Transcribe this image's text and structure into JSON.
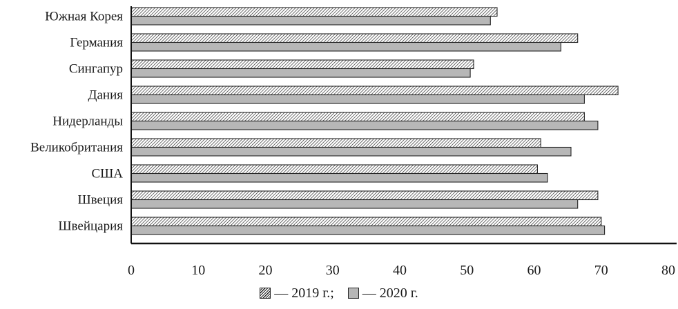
{
  "chart_data": {
    "type": "bar",
    "orientation": "horizontal",
    "categories": [
      "Южная Корея",
      "Германия",
      "Сингапур",
      "Дания",
      "Нидерланды",
      "Великобритания",
      "США",
      "Швеция",
      "Швейцария"
    ],
    "series": [
      {
        "name": "2019 г.",
        "values": [
          54.5,
          66.5,
          51,
          72.5,
          67.5,
          61,
          60.5,
          69.5,
          70
        ],
        "fill": "hatched"
      },
      {
        "name": "2020 г.",
        "values": [
          53.5,
          64,
          50.5,
          67.5,
          69.5,
          65.5,
          62,
          66.5,
          70.5
        ],
        "fill": "#b7b7b7"
      }
    ],
    "xticks": [
      "0",
      "10",
      "20",
      "30",
      "40",
      "50",
      "60",
      "70",
      "80"
    ],
    "xlim": [
      0,
      80
    ],
    "legend_position": "bottom",
    "grid": false
  },
  "legend": {
    "dash": "—",
    "separator": ";",
    "label_2019": "2019 г.",
    "label_2020": "2020 г."
  }
}
